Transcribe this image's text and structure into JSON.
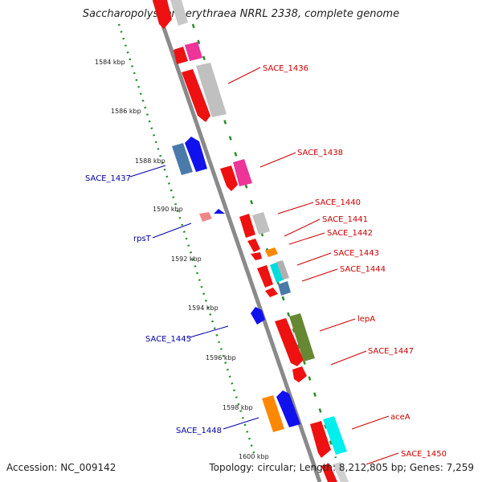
{
  "title": "Saccharopolyspora erythraea NRRL 2338, complete genome",
  "accession": "Accession: NC_009142",
  "summary": "Topology: circular; Length: 8,212,805 bp; Genes: 7,259",
  "colors": {
    "backbone": "#8a8a8a",
    "plus_label": "#cc0000",
    "minus_label": "#0000aa",
    "dotted_track": "#2a8a2a"
  },
  "kbp_ticks": [
    "1584 kbp",
    "1586 kbp",
    "1588 kbp",
    "1590 kbp",
    "1592 kbp",
    "1594 kbp",
    "1596 kbp",
    "1598 kbp",
    "1600 kbp"
  ],
  "plus_labels": [
    "SACE_1436",
    "SACE_1438",
    "SACE_1440",
    "SACE_1441",
    "SACE_1442",
    "SACE_1443",
    "SACE_1444",
    "lepA",
    "SACE_1447",
    "aceA",
    "SACE_1450"
  ],
  "minus_labels": [
    "SACE_1437",
    "rpsT",
    "SACE_1445",
    "SACE_1448"
  ]
}
